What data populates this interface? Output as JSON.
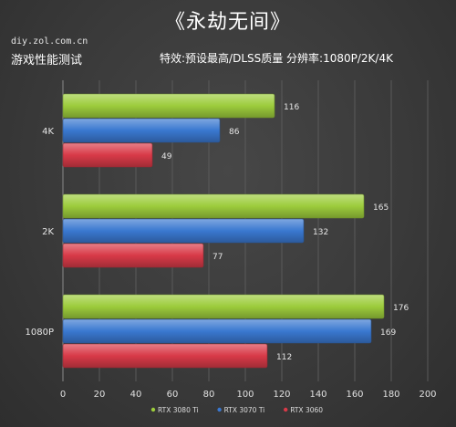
{
  "header": {
    "title": "《永劫无间》",
    "site": "diy.zol.com.cn",
    "subtitle_left": "游戏性能测试",
    "subtitle_right": "特效:预设最高/DLSS质量  分辨率:1080P/2K/4K"
  },
  "chart_data": {
    "type": "bar",
    "orientation": "horizontal",
    "categories": [
      "4K",
      "2K",
      "1080P"
    ],
    "series": [
      {
        "name": "RTX 3080 Ti",
        "color": "#9ccc3c",
        "values": [
          116,
          165,
          176
        ]
      },
      {
        "name": "RTX 3070 Ti",
        "color": "#3a78d0",
        "values": [
          86,
          132,
          169
        ]
      },
      {
        "name": "RTX 3060",
        "color": "#d83a48",
        "values": [
          49,
          77,
          112
        ]
      }
    ],
    "xlim": [
      0,
      200
    ],
    "xticks": [
      0,
      20,
      40,
      60,
      80,
      100,
      120,
      140,
      160,
      180,
      200
    ],
    "grid": true,
    "legend_position": "bottom-center"
  }
}
